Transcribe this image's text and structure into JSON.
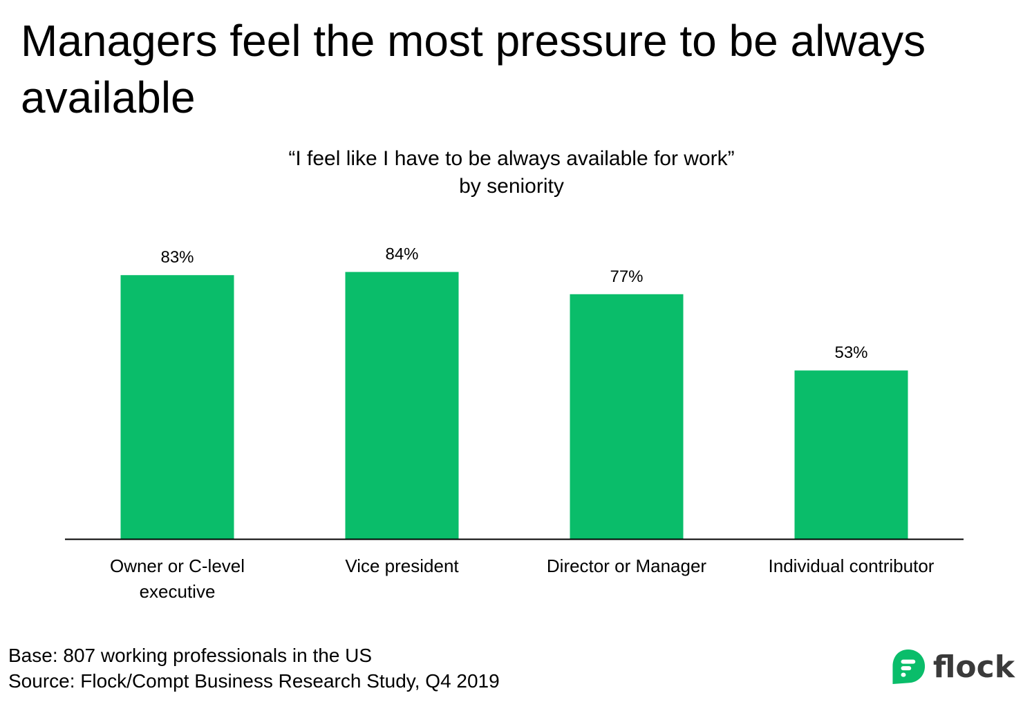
{
  "title": "Managers feel the most pressure to be always available",
  "chart_heading": {
    "line1": "“I feel like I have to be always available for work”",
    "line2": "by seniority"
  },
  "chart_data": {
    "type": "bar",
    "categories": [
      [
        "Owner or C-level",
        "executive"
      ],
      [
        "Vice president"
      ],
      [
        "Director or Manager"
      ],
      [
        "Individual contributor"
      ]
    ],
    "values": [
      83,
      84,
      77,
      53
    ],
    "value_labels": [
      "83%",
      "84%",
      "77%",
      "53%"
    ],
    "unit": "%",
    "ylim": [
      0,
      100
    ],
    "grid": false,
    "legend": "none",
    "bar_color": "#0abd6a",
    "axis_color": "#000000"
  },
  "footnote": {
    "base": "Base: 807 working professionals in the US",
    "source": "Source: Flock/Compt Business Research Study, Q4 2019"
  },
  "logo": {
    "text": "flock",
    "icon": "flock-logo-icon",
    "color": "#0abd6a"
  }
}
